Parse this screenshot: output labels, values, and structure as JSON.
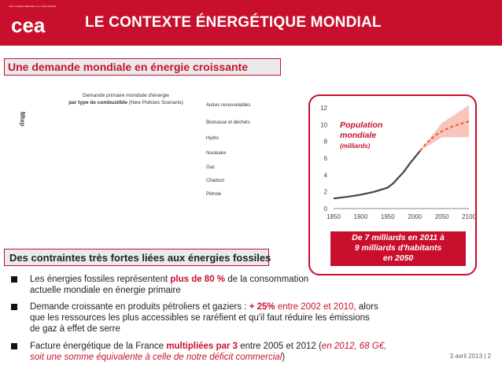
{
  "header": {
    "logo_caption": "DE LA RECHERCHE À L'INDUSTRIE",
    "logo_text": "cea",
    "title": "LE CONTEXTE ÉNERGÉTIQUE MONDIAL"
  },
  "section1": {
    "subtitle": "Une demande mondiale en énergie croissante"
  },
  "demand_chart": {
    "title_line1": "Demande primaire mondiale d'énergie",
    "title_line2_bold": "par type de combustible",
    "title_line2_rest": "(New Policies Scenario)",
    "y_axis_marker": "Mtep",
    "legend": [
      "Autres renouvelables",
      "Biomasse et déchets",
      "Hydro",
      "Nucléaire",
      "Gaz",
      "Charbon",
      "Pétrole"
    ]
  },
  "chart_data": {
    "type": "line",
    "title": "",
    "x": [
      1850,
      1900,
      1950,
      2000,
      2050,
      2100
    ],
    "xlabel": "",
    "ylabel": "",
    "xlim": [
      1850,
      2100
    ],
    "ylim": [
      0,
      12
    ],
    "yticks": [
      0,
      2,
      4,
      6,
      8,
      10,
      12
    ],
    "series": [
      {
        "x": [
          1850,
          1875,
          1900,
          1925,
          1950,
          1960,
          1970,
          1980,
          1990,
          2000,
          2010
        ],
        "values": [
          1.2,
          1.4,
          1.65,
          2.0,
          2.5,
          3.0,
          3.7,
          4.4,
          5.3,
          6.1,
          6.9
        ]
      },
      {
        "x": [
          2010,
          2020,
          2030,
          2040,
          2050,
          2060,
          2070,
          2080,
          2090,
          2100
        ],
        "values": [
          6.9,
          7.7,
          8.3,
          8.8,
          9.2,
          9.5,
          9.8,
          10.0,
          10.2,
          10.4
        ]
      }
    ],
    "uncertainty_band": {
      "x": [
        2010,
        2050,
        2100
      ],
      "low": [
        6.9,
        8.5,
        8.5
      ],
      "high": [
        6.9,
        10.2,
        12.3
      ]
    },
    "grid": false
  },
  "population": {
    "label_line1": "Population",
    "label_line2": "mondiale",
    "unit": "(milliards)",
    "caption_line1": "De 7 milliards en 2011 à",
    "caption_line2": "9 milliards d'habitants",
    "caption_line3": "en 2050"
  },
  "section2": {
    "subtitle": "Des contraintes très fortes liées aux énergies fossiles"
  },
  "bullets": {
    "b1_a": "Les énergies fossiles représentent ",
    "b1_bold": "plus de 80 %",
    "b1_b": " de la consommation",
    "b1_line2": "actuelle mondiale en énergie primaire",
    "b2_a": "Demande croissante en produits pétroliers et gaziers : ",
    "b2_bold": "+ 25%",
    "b2_red": " entre 2002 et 2010",
    "b2_b": ", alors",
    "b2_line2": "que les ressources les plus accessibles se raréfient et qu'il faut réduire les émissions",
    "b2_line3": "de gaz à effet de serre",
    "b3_a": "Facture énergétique de la France ",
    "b3_bold": "multipliées par 3",
    "b3_b": " entre 2005 et 2012 (",
    "b3_it": "en 2012, 68 G€,",
    "b3_line2_it": "soit une somme équivalente à celle de notre déficit commercial",
    "b3_line2_end": ")"
  },
  "footer": {
    "text": "3 avril 2013 | 2"
  },
  "colors": {
    "brand_red": "#c8102e",
    "subtitle_bg": "#eaeaea",
    "line_color": "#444444",
    "projection_color": "#e85a3a"
  }
}
